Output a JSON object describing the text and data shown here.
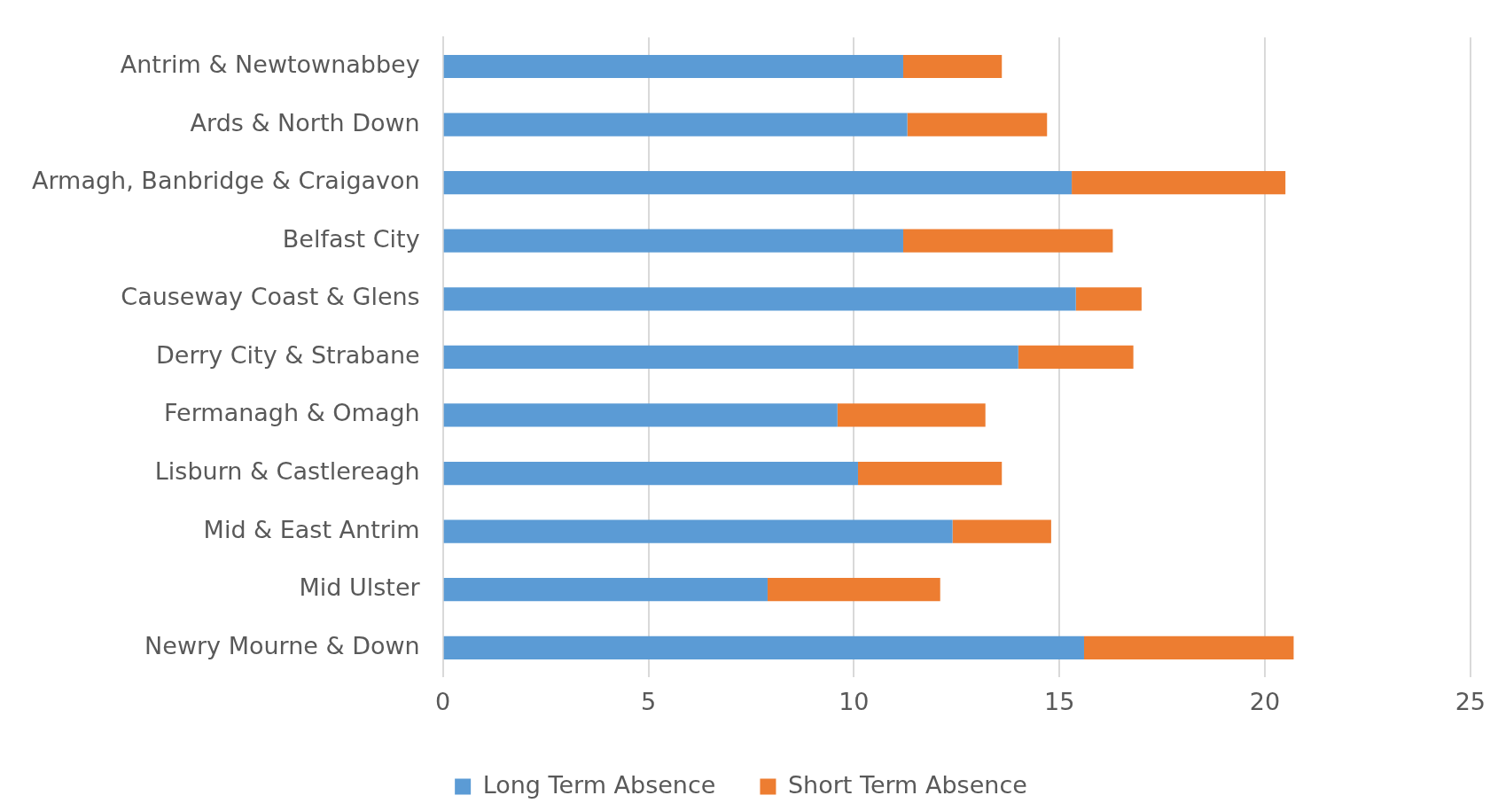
{
  "chart_data": {
    "type": "bar",
    "orientation": "horizontal",
    "stacked": true,
    "categories": [
      "Antrim & Newtownabbey",
      "Ards & North Down",
      "Armagh, Banbridge & Craigavon",
      "Belfast City",
      "Causeway Coast & Glens",
      "Derry City & Strabane",
      "Fermanagh & Omagh",
      "Lisburn & Castlereagh",
      "Mid & East Antrim",
      "Mid Ulster",
      "Newry Mourne & Down"
    ],
    "series": [
      {
        "name": "Long Term Absence",
        "color": "#5b9bd5",
        "values": [
          11.2,
          11.3,
          15.3,
          11.2,
          15.4,
          14.0,
          9.6,
          10.1,
          12.4,
          7.9,
          15.6
        ]
      },
      {
        "name": "Short Term Absence",
        "color": "#ed7d31",
        "values": [
          2.4,
          3.4,
          5.2,
          5.1,
          1.6,
          2.8,
          3.6,
          3.5,
          2.4,
          4.2,
          5.1
        ]
      }
    ],
    "xlim": [
      0,
      25
    ],
    "xticks": [
      0,
      5,
      10,
      15,
      20,
      25
    ],
    "grid": "x",
    "legend": "bottom"
  }
}
